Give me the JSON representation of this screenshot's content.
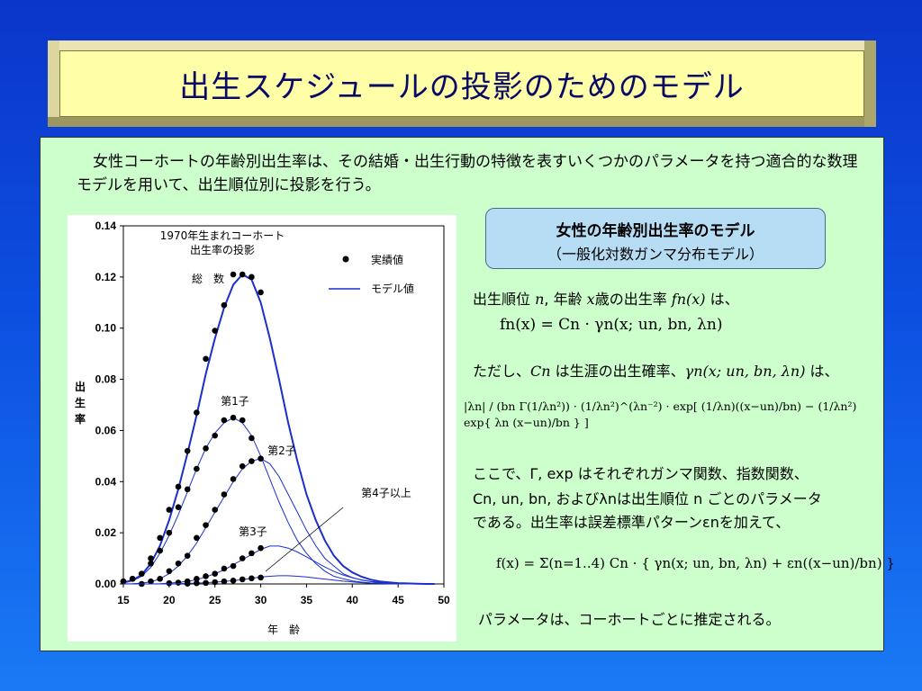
{
  "title": "出生スケジュールの投影のためのモデル",
  "intro": "女性コーホートの年齢別出生率は、その結婚・出生行動の特徴を表すいくつかのパラメータを持つ適合的な数理モデルを用いて、出生順位別に投影を行う。",
  "model_box": {
    "title": "女性の年齢別出生率のモデル",
    "subtitle": "（一般化対数ガンマ分布モデル）"
  },
  "explanation": {
    "line1_a": "出生順位 ",
    "line1_n": "n",
    "line1_b": ", 年齢 ",
    "line1_x": "x",
    "line1_c": "歳の出生率 ",
    "line1_f": "fn(x)",
    "line1_d": " は、",
    "eq1": "fn(x) = Cn · γn(x; un, bn, λn)",
    "line2_a": "ただし、",
    "line2_c": "Cn",
    "line2_b": " は生涯の出生確率、",
    "line2_g": "γn(x; un, bn, λn)",
    "line2_d": " は、",
    "eq2": "|λn| / (bn Γ(1/λn²)) · (1/λn²)^(λn⁻²) · exp[ (1/λn)((x−un)/bn) − (1/λn²) exp{ λn (x−un)/bn } ]",
    "line3": "ここで、Γ, exp はそれぞれガンマ関数、指数関数、",
    "line4": "Cn, un, bn, およびλnは出生順位 n ごとのパラメータ",
    "line5": "である。出生率は誤差標準パターンεnを加えて、",
    "eq3": "f(x) = Σ(n=1..4) Cn · { γn(x; un, bn, λn) + εn((x−un)/bn) }",
    "line6": "パラメータは、コーホートごとに推定される。"
  },
  "chart_data": {
    "type": "line",
    "title": "1970年生まれコーホート\n出生率の投影",
    "xlabel": "年　齢",
    "ylabel": "出\n生\n率",
    "xlim": [
      15,
      50
    ],
    "ylim": [
      0,
      0.14
    ],
    "x_ticks": [
      "15",
      "20",
      "25",
      "30",
      "35",
      "40",
      "45",
      "50"
    ],
    "y_ticks": [
      "0.00",
      "0.02",
      "0.04",
      "0.06",
      "0.08",
      "0.10",
      "0.12",
      "0.14"
    ],
    "legend": [
      {
        "name": "実績値",
        "marker": "dot"
      },
      {
        "name": "モデル値",
        "marker": "line"
      }
    ],
    "legend_position": "top-right",
    "annotations": [
      "総　数",
      "第1子",
      "第2子",
      "第3子",
      "第4子以上"
    ],
    "colors": {
      "model": "#1a2fcc",
      "actual": "#000000"
    },
    "series": [
      {
        "name": "総　数",
        "model_x": [
          15,
          16,
          17,
          18,
          19,
          20,
          21,
          22,
          23,
          24,
          25,
          26,
          27,
          28,
          29,
          30,
          31,
          32,
          33,
          34,
          35,
          36,
          37,
          38,
          39,
          40,
          41,
          42,
          43,
          44,
          45,
          46,
          47,
          48,
          49
        ],
        "model_y": [
          0.0005,
          0.0015,
          0.0035,
          0.008,
          0.015,
          0.025,
          0.037,
          0.051,
          0.066,
          0.082,
          0.096,
          0.108,
          0.117,
          0.121,
          0.119,
          0.11,
          0.096,
          0.08,
          0.063,
          0.048,
          0.035,
          0.025,
          0.017,
          0.011,
          0.007,
          0.0045,
          0.0028,
          0.0017,
          0.001,
          0.0006,
          0.0003,
          0.0002,
          0.0001,
          0.0,
          0.0
        ],
        "actual_x": [
          15,
          16,
          17,
          18,
          19,
          20,
          21,
          22,
          23,
          24,
          25,
          26,
          27,
          28,
          29,
          30
        ],
        "actual_y": [
          0.001,
          0.002,
          0.004,
          0.01,
          0.018,
          0.029,
          0.038,
          0.052,
          0.067,
          0.088,
          0.099,
          0.109,
          0.121,
          0.121,
          0.12,
          0.114
        ]
      },
      {
        "name": "第1子",
        "model_x": [
          15,
          16,
          17,
          18,
          19,
          20,
          21,
          22,
          23,
          24,
          25,
          26,
          27,
          28,
          29,
          30,
          31,
          32,
          33,
          34,
          35,
          36,
          37,
          38,
          39,
          40,
          41,
          42,
          43,
          44,
          45,
          46,
          47,
          48,
          49
        ],
        "model_y": [
          0.0004,
          0.0012,
          0.003,
          0.0065,
          0.012,
          0.019,
          0.027,
          0.036,
          0.045,
          0.053,
          0.059,
          0.063,
          0.065,
          0.063,
          0.058,
          0.05,
          0.041,
          0.032,
          0.024,
          0.017,
          0.012,
          0.008,
          0.005,
          0.003,
          0.002,
          0.0012,
          0.0007,
          0.0004,
          0.0002,
          0.0001,
          0.0,
          0.0,
          0.0,
          0.0,
          0.0
        ],
        "actual_x": [
          15,
          16,
          17,
          18,
          19,
          20,
          21,
          22,
          23,
          24,
          25,
          26,
          27,
          28,
          29
        ],
        "actual_y": [
          0.001,
          0.002,
          0.004,
          0.008,
          0.013,
          0.02,
          0.03,
          0.037,
          0.045,
          0.053,
          0.058,
          0.064,
          0.065,
          0.064,
          0.057
        ]
      },
      {
        "name": "第2子",
        "model_x": [
          15,
          16,
          17,
          18,
          19,
          20,
          21,
          22,
          23,
          24,
          25,
          26,
          27,
          28,
          29,
          30,
          31,
          32,
          33,
          34,
          35,
          36,
          37,
          38,
          39,
          40,
          41,
          42,
          43,
          44,
          45,
          46,
          47,
          48,
          49
        ],
        "model_y": [
          0.0,
          0.0001,
          0.0003,
          0.0008,
          0.002,
          0.004,
          0.007,
          0.011,
          0.016,
          0.022,
          0.028,
          0.034,
          0.04,
          0.045,
          0.048,
          0.049,
          0.047,
          0.042,
          0.035,
          0.028,
          0.021,
          0.015,
          0.01,
          0.007,
          0.004,
          0.0025,
          0.0015,
          0.0009,
          0.0005,
          0.0003,
          0.0001,
          0.0,
          0.0,
          0.0,
          0.0
        ],
        "actual_x": [
          17,
          18,
          19,
          20,
          21,
          22,
          23,
          24,
          25,
          26,
          27,
          28,
          29,
          30
        ],
        "actual_y": [
          0.0,
          0.001,
          0.002,
          0.005,
          0.008,
          0.011,
          0.018,
          0.023,
          0.029,
          0.035,
          0.041,
          0.046,
          0.048,
          0.049
        ]
      },
      {
        "name": "第3子",
        "model_x": [
          15,
          16,
          17,
          18,
          19,
          20,
          21,
          22,
          23,
          24,
          25,
          26,
          27,
          28,
          29,
          30,
          31,
          32,
          33,
          34,
          35,
          36,
          37,
          38,
          39,
          40,
          41,
          42,
          43,
          44,
          45,
          46,
          47,
          48,
          49
        ],
        "model_y": [
          0.0,
          0.0,
          0.0,
          0.0,
          0.0001,
          0.0003,
          0.0006,
          0.001,
          0.0017,
          0.0027,
          0.004,
          0.0055,
          0.0075,
          0.0095,
          0.0115,
          0.0135,
          0.0148,
          0.0148,
          0.014,
          0.0125,
          0.0106,
          0.0086,
          0.0066,
          0.0049,
          0.0035,
          0.0024,
          0.0016,
          0.001,
          0.0006,
          0.0004,
          0.0002,
          0.0001,
          0.0,
          0.0,
          0.0
        ],
        "actual_x": [
          20,
          21,
          22,
          23,
          24,
          25,
          26,
          27,
          28,
          29,
          30
        ],
        "actual_y": [
          0.0003,
          0.0005,
          0.001,
          0.002,
          0.003,
          0.004,
          0.006,
          0.007,
          0.01,
          0.012,
          0.014
        ]
      },
      {
        "name": "第4子以上",
        "model_x": [
          15,
          16,
          17,
          18,
          19,
          20,
          21,
          22,
          23,
          24,
          25,
          26,
          27,
          28,
          29,
          30,
          31,
          32,
          33,
          34,
          35,
          36,
          37,
          38,
          39,
          40,
          41,
          42,
          43,
          44,
          45,
          46,
          47,
          48,
          49
        ],
        "model_y": [
          0.0,
          0.0,
          0.0,
          0.0,
          0.0,
          0.0,
          0.0001,
          0.0002,
          0.0003,
          0.0005,
          0.0007,
          0.001,
          0.0013,
          0.0017,
          0.0022,
          0.0027,
          0.003,
          0.0032,
          0.0032,
          0.003,
          0.0027,
          0.0023,
          0.0019,
          0.0015,
          0.0011,
          0.0008,
          0.0005,
          0.0003,
          0.0002,
          0.0001,
          0.0,
          0.0,
          0.0,
          0.0,
          0.0
        ],
        "actual_x": [
          22,
          23,
          24,
          25,
          26,
          27,
          28,
          29,
          30
        ],
        "actual_y": [
          0.0001,
          0.0003,
          0.0004,
          0.0007,
          0.001,
          0.0013,
          0.0018,
          0.0022,
          0.0025
        ]
      }
    ]
  }
}
